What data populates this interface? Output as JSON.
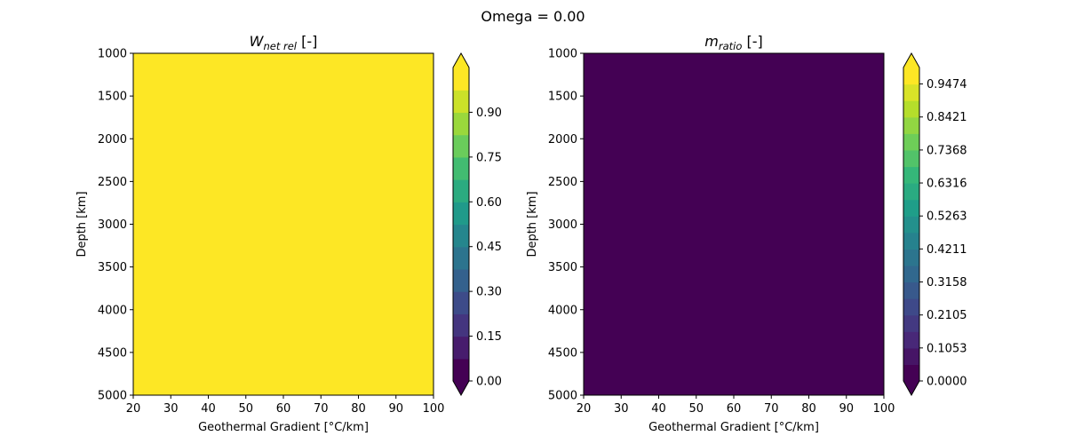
{
  "figure": {
    "suptitle": "Omega = 0.00"
  },
  "chart_data": [
    {
      "type": "heatmap",
      "title_main": "W",
      "title_sub": "net rel",
      "title_unit": " [-]",
      "xlabel": "Geothermal Gradient [°C/km]",
      "ylabel": "Depth [km]",
      "xlim": [
        20,
        100
      ],
      "ylim": [
        1000,
        5000
      ],
      "y_inverted": true,
      "xticks": [
        20,
        30,
        40,
        50,
        60,
        70,
        80,
        90,
        100
      ],
      "yticks": [
        1000,
        1500,
        2000,
        2500,
        3000,
        3500,
        4000,
        4500,
        5000
      ],
      "uniform_value": 1.0,
      "fill_color": "#fde725",
      "colorbar": {
        "levels": [
          0.0,
          0.075,
          0.15,
          0.225,
          0.3,
          0.375,
          0.45,
          0.525,
          0.6,
          0.675,
          0.75,
          0.825,
          0.9,
          0.975,
          1.05
        ],
        "tick_labels": [
          "0.00",
          "0.15",
          "0.30",
          "0.45",
          "0.60",
          "0.75",
          "0.90"
        ],
        "tick_values": [
          0.0,
          0.15,
          0.3,
          0.45,
          0.6,
          0.75,
          0.9
        ],
        "extend": "both",
        "colormap": "viridis"
      }
    },
    {
      "type": "heatmap",
      "title_main": "m",
      "title_sub": "ratio",
      "title_unit": " [-]",
      "xlabel": "Geothermal Gradient [°C/km]",
      "ylabel": "Depth [km]",
      "xlim": [
        20,
        100
      ],
      "ylim": [
        1000,
        5000
      ],
      "y_inverted": true,
      "xticks": [
        20,
        30,
        40,
        50,
        60,
        70,
        80,
        90,
        100
      ],
      "yticks": [
        1000,
        1500,
        2000,
        2500,
        3000,
        3500,
        4000,
        4500,
        5000
      ],
      "uniform_value": 0.0,
      "fill_color": "#440154",
      "colorbar": {
        "levels": [
          0.0,
          0.0526,
          0.1053,
          0.1579,
          0.2105,
          0.2632,
          0.3158,
          0.3684,
          0.4211,
          0.4737,
          0.5263,
          0.5789,
          0.6316,
          0.6842,
          0.7368,
          0.7895,
          0.8421,
          0.8947,
          0.9474,
          1.0
        ],
        "tick_labels": [
          "0.0000",
          "0.1053",
          "0.2105",
          "0.3158",
          "0.4211",
          "0.5263",
          "0.6316",
          "0.7368",
          "0.8421",
          "0.9474"
        ],
        "tick_values": [
          0.0,
          0.1053,
          0.2105,
          0.3158,
          0.4211,
          0.5263,
          0.6316,
          0.7368,
          0.8421,
          0.9474
        ],
        "extend": "both",
        "colormap": "viridis"
      }
    }
  ]
}
